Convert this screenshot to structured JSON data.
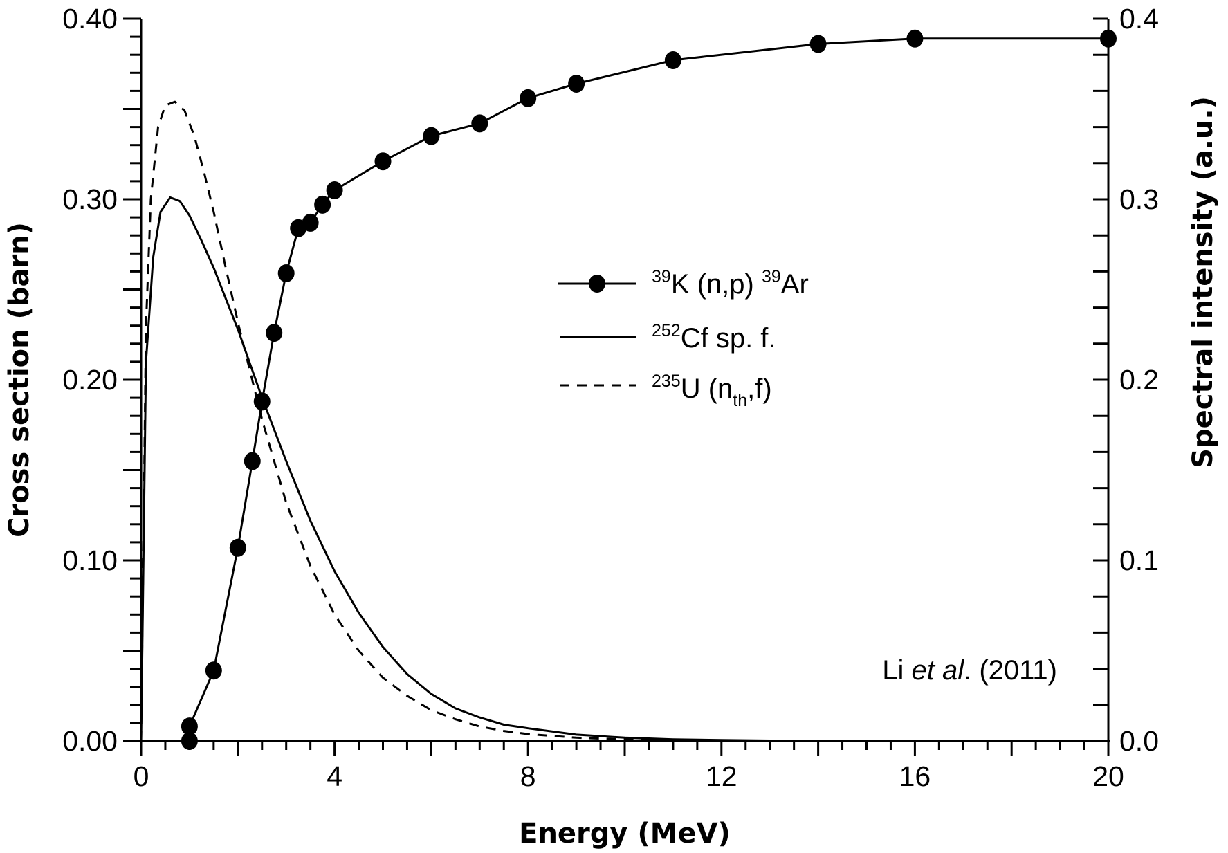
{
  "chart_data": {
    "type": "line",
    "title": "",
    "xlabel": "Energy (MeV)",
    "ylabel_left": "Cross section (barn)",
    "ylabel_right": "Spectral intensity (a.u.)",
    "xlim": [
      0,
      20
    ],
    "ylim_left": [
      0,
      0.4
    ],
    "ylim_right": [
      0,
      0.4
    ],
    "grid": false,
    "legend_position": "center",
    "x_ticks": [
      "0",
      "4",
      "8",
      "12",
      "16",
      "20"
    ],
    "x_tick_values": [
      0,
      4,
      8,
      12,
      16,
      20
    ],
    "y_left_ticks": [
      "0.00",
      "0.10",
      "0.20",
      "0.30",
      "0.40"
    ],
    "y_left_tick_values": [
      0,
      0.1,
      0.2,
      0.3,
      0.4
    ],
    "y_right_ticks": [
      "0.0",
      "0.1",
      "0.2",
      "0.3",
      "0.4"
    ],
    "y_right_tick_values": [
      0,
      0.1,
      0.2,
      0.3,
      0.4
    ],
    "annotation": {
      "prefix": "Li ",
      "italic": "et al",
      "suffix": ". (2011)"
    },
    "series": [
      {
        "name": "39K (n,p) 39Ar",
        "legend": {
          "sup1": "39",
          "main1": "K (n,p) ",
          "sup2": "39",
          "main2": "Ar"
        },
        "style": "solid-markers",
        "axis": "left",
        "x": [
          1.0,
          1.0,
          1.5,
          2.0,
          2.3,
          2.5,
          2.75,
          3.0,
          3.25,
          3.5,
          3.75,
          4.0,
          5.0,
          6.0,
          7.0,
          8.0,
          9.0,
          11.0,
          14.0,
          16.0,
          20.0
        ],
        "y": [
          0.0,
          0.008,
          0.039,
          0.107,
          0.155,
          0.188,
          0.226,
          0.259,
          0.284,
          0.287,
          0.297,
          0.305,
          0.321,
          0.335,
          0.342,
          0.356,
          0.364,
          0.377,
          0.386,
          0.389,
          0.389
        ]
      },
      {
        "name": "252Cf sp. f.",
        "legend": {
          "sup1": "252",
          "main1": "Cf sp. f."
        },
        "style": "solid",
        "axis": "right",
        "x": [
          0.0,
          0.1,
          0.25,
          0.4,
          0.6,
          0.8,
          1.0,
          1.25,
          1.5,
          1.75,
          2.0,
          2.5,
          3.0,
          3.5,
          4.0,
          4.5,
          5.0,
          5.5,
          6.0,
          6.5,
          7.0,
          7.5,
          8.0,
          9.0,
          10.0,
          11.0,
          12.0,
          13.0,
          14.0,
          16.0,
          20.0
        ],
        "y": [
          0.0,
          0.21,
          0.268,
          0.293,
          0.301,
          0.299,
          0.291,
          0.277,
          0.262,
          0.245,
          0.228,
          0.19,
          0.155,
          0.122,
          0.094,
          0.071,
          0.052,
          0.037,
          0.026,
          0.018,
          0.013,
          0.009,
          0.007,
          0.0035,
          0.0018,
          0.0009,
          0.0005,
          0.0002,
          0.0001,
          0.0,
          0.0
        ]
      },
      {
        "name": "235U (nth,f)",
        "legend": {
          "sup1": "235",
          "main1": "U (n",
          "sub": "th",
          "main2": ",f)"
        },
        "style": "dashed",
        "axis": "right",
        "x": [
          0.0,
          0.1,
          0.2,
          0.35,
          0.5,
          0.7,
          0.9,
          1.1,
          1.3,
          1.5,
          1.75,
          2.0,
          2.5,
          3.0,
          3.5,
          4.0,
          4.5,
          5.0,
          5.5,
          6.0,
          6.5,
          7.0,
          7.5,
          8.0,
          9.0,
          10.0,
          11.0,
          12.0,
          14.0,
          20.0
        ],
        "y": [
          0.0,
          0.23,
          0.3,
          0.34,
          0.352,
          0.354,
          0.349,
          0.335,
          0.315,
          0.293,
          0.262,
          0.232,
          0.178,
          0.132,
          0.097,
          0.07,
          0.05,
          0.035,
          0.025,
          0.017,
          0.012,
          0.008,
          0.0055,
          0.0038,
          0.0018,
          0.0008,
          0.0004,
          0.0002,
          0.0,
          0.0
        ]
      }
    ]
  }
}
